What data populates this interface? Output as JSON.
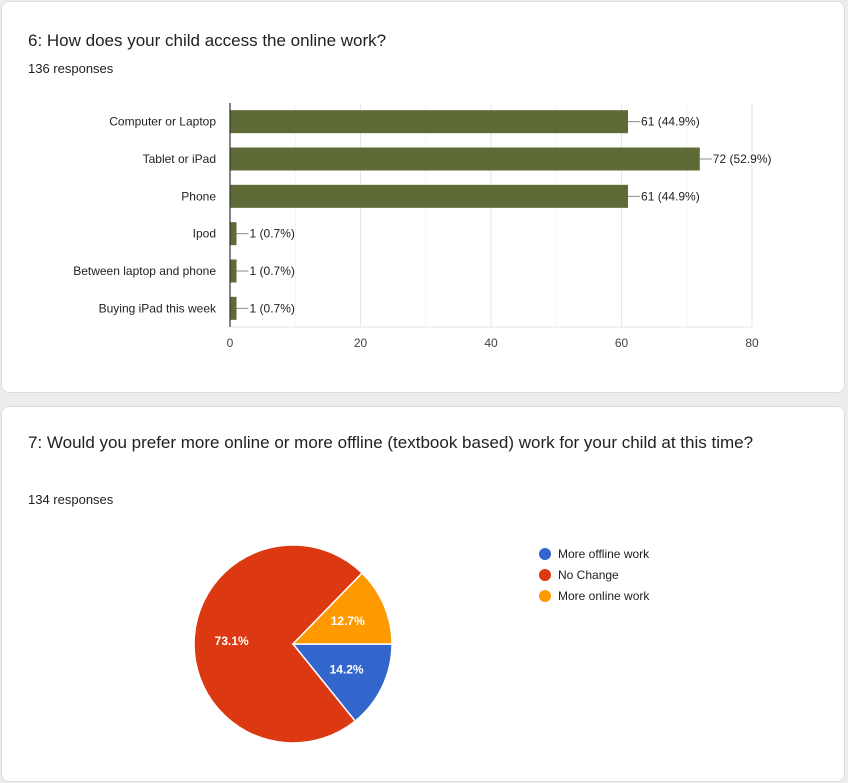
{
  "q6": {
    "title": "6: How does your child access the online work?",
    "responses": "136 responses"
  },
  "q7": {
    "title": "7: Would you prefer more online or more offline (textbook based) work for your child at this time?",
    "responses": "134 responses"
  },
  "chart_data": [
    {
      "type": "bar",
      "orientation": "horizontal",
      "categories": [
        "Computer or Laptop",
        "Tablet or iPad",
        "Phone",
        "Ipod",
        "Between laptop and phone",
        "Buying iPad this week"
      ],
      "values": [
        61,
        72,
        61,
        1,
        1,
        1
      ],
      "data_labels": [
        "61 (44.9%)",
        "72 (52.9%)",
        "61 (44.9%)",
        "1 (0.7%)",
        "1 (0.7%)",
        "1 (0.7%)"
      ],
      "xlim": [
        0,
        80
      ],
      "xticks": [
        0,
        20,
        40,
        60,
        80
      ],
      "grid": true,
      "color": "#5f6b37"
    },
    {
      "type": "pie",
      "labels": [
        "More offline work",
        "No Change",
        "More online work"
      ],
      "values": [
        14.2,
        73.1,
        12.7
      ],
      "data_labels": [
        "14.2%",
        "73.1%",
        "12.7%"
      ],
      "colors": [
        "#3366cc",
        "#dc3912",
        "#ff9900"
      ],
      "legend": "right"
    }
  ]
}
